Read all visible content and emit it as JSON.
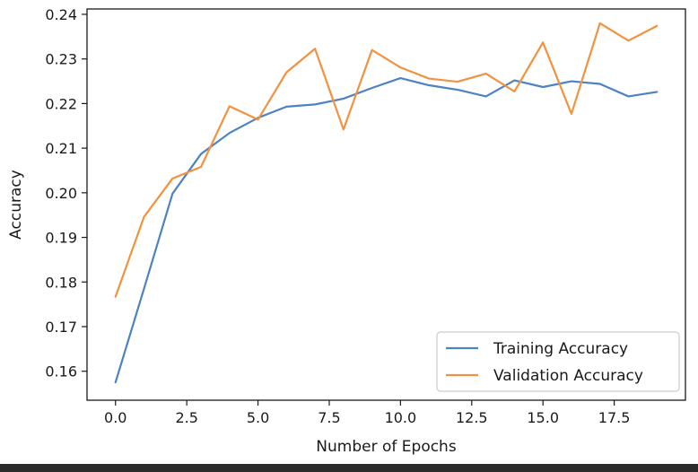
{
  "chart_data": {
    "type": "line",
    "title": "",
    "xlabel": "Number of Epochs",
    "ylabel": "Accuracy",
    "xlim": [
      -1.0,
      20.0
    ],
    "ylim": [
      0.1535,
      0.2412
    ],
    "xticks": [
      0.0,
      2.5,
      5.0,
      7.5,
      10.0,
      12.5,
      15.0,
      17.5
    ],
    "xtick_labels": [
      "0.0",
      "2.5",
      "5.0",
      "7.5",
      "10.0",
      "12.5",
      "15.0",
      "17.5"
    ],
    "yticks": [
      0.16,
      0.17,
      0.18,
      0.19,
      0.2,
      0.21,
      0.22,
      0.23,
      0.24
    ],
    "ytick_labels": [
      "0.16",
      "0.17",
      "0.18",
      "0.19",
      "0.20",
      "0.21",
      "0.22",
      "0.23",
      "0.24"
    ],
    "grid": false,
    "legend_position": "bottom-right",
    "x": [
      0,
      1,
      2,
      3,
      4,
      5,
      6,
      7,
      8,
      9,
      10,
      11,
      12,
      13,
      14,
      15,
      16,
      17,
      18,
      19
    ],
    "series": [
      {
        "name": "Training Accuracy",
        "color": "#4c83c0",
        "values": [
          0.1575,
          0.1785,
          0.1998,
          0.2087,
          0.2134,
          0.2168,
          0.2193,
          0.2198,
          0.2211,
          0.2235,
          0.2257,
          0.2241,
          0.2231,
          0.2216,
          0.2252,
          0.2237,
          0.225,
          0.2244,
          0.2216,
          0.2226
        ]
      },
      {
        "name": "Validation Accuracy",
        "color": "#f2923e",
        "values": [
          0.1767,
          0.1946,
          0.2032,
          0.2058,
          0.2194,
          0.2164,
          0.227,
          0.2323,
          0.2142,
          0.232,
          0.2281,
          0.2256,
          0.2249,
          0.2267,
          0.2227,
          0.2337,
          0.2177,
          0.238,
          0.2341,
          0.2374
        ]
      }
    ]
  }
}
